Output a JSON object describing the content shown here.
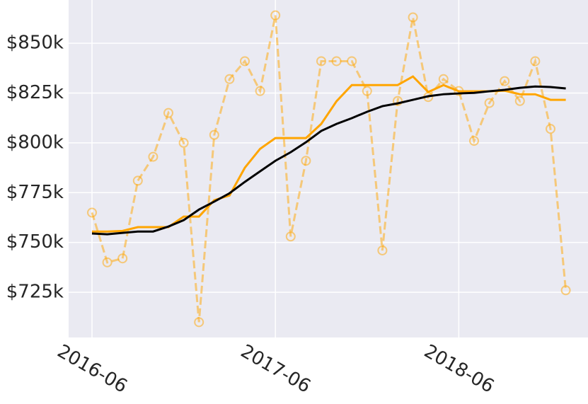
{
  "chart_data": {
    "type": "line",
    "x": [
      "2016-06",
      "2016-07",
      "2016-08",
      "2016-09",
      "2016-10",
      "2016-11",
      "2016-12",
      "2017-01",
      "2017-02",
      "2017-03",
      "2017-04",
      "2017-05",
      "2017-06",
      "2017-07",
      "2017-08",
      "2017-09",
      "2017-10",
      "2017-11",
      "2017-12",
      "2018-01",
      "2018-02",
      "2018-03",
      "2018-04",
      "2018-05",
      "2018-06",
      "2018-07",
      "2018-08",
      "2018-09",
      "2018-10",
      "2018-11",
      "2018-12",
      "2019-01"
    ],
    "xticks": [
      "2016-06",
      "2017-06",
      "2018-06"
    ],
    "ylim": [
      702300,
      871700
    ],
    "yticks": [
      {
        "value": 725000,
        "label": "$725k"
      },
      {
        "value": 750000,
        "label": "$750k"
      },
      {
        "value": 775000,
        "label": "$775k"
      },
      {
        "value": 800000,
        "label": "$800k"
      },
      {
        "value": 825000,
        "label": "$825k"
      },
      {
        "value": 850000,
        "label": "$850k"
      }
    ],
    "grid": true,
    "series": [
      {
        "color": "#ffa500",
        "style": "dashed",
        "marker": "circle",
        "alpha": 0.5,
        "values": [
          765000,
          740000,
          742000,
          781000,
          793000,
          815000,
          800000,
          710000,
          804000,
          832000,
          841000,
          826000,
          864000,
          753000,
          791000,
          841000,
          841000,
          841000,
          826000,
          746000,
          821000,
          863000,
          823000,
          832000,
          826000,
          801000,
          820000,
          831000,
          821000,
          841000,
          807000,
          726000
        ]
      },
      {
        "color": "#ffa500",
        "style": "solid",
        "values": [
          755500,
          755500,
          755800,
          757700,
          757700,
          757700,
          763000,
          763000,
          771200,
          773600,
          787500,
          797000,
          802400,
          802400,
          802400,
          809500,
          820900,
          829000,
          829000,
          829000,
          829000,
          833300,
          825500,
          829000,
          825900,
          825900,
          825900,
          826200,
          824400,
          824400,
          821600,
          821600
        ]
      },
      {
        "color": "#000000",
        "style": "solid",
        "values": [
          754500,
          754100,
          754800,
          755500,
          755500,
          758000,
          761200,
          766500,
          770500,
          774700,
          780400,
          785700,
          791000,
          795300,
          800300,
          806000,
          809500,
          812400,
          815600,
          818400,
          819800,
          821600,
          823400,
          824400,
          824800,
          825100,
          825900,
          826600,
          827600,
          828300,
          828000,
          827300
        ]
      }
    ]
  }
}
